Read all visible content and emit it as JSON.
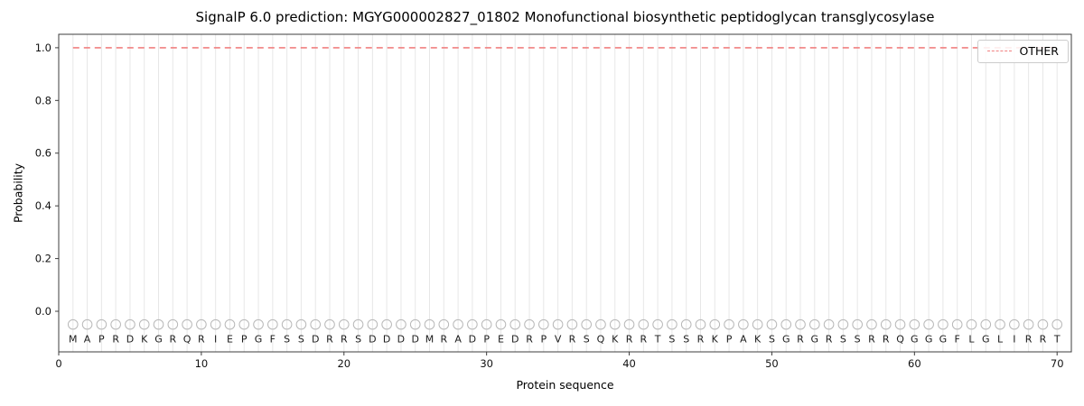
{
  "chart_data": {
    "type": "line",
    "title": "SignalP 6.0 prediction: MGYG000002827_01802 Monofunctional biosynthetic peptidoglycan transglycosylase",
    "xlabel": "Protein sequence",
    "ylabel": "Probability",
    "xlim": [
      0,
      71
    ],
    "ylim": [
      -0.154,
      1.051
    ],
    "x_ticks": [
      0,
      10,
      20,
      30,
      40,
      50,
      60,
      70
    ],
    "y_ticks": [
      0.0,
      0.2,
      0.4,
      0.6,
      0.8,
      1.0
    ],
    "grid": "vertical line at every residue position",
    "legend": {
      "position": "upper right",
      "entries": [
        {
          "label": "OTHER",
          "color": "#f08080",
          "style": "dashed"
        }
      ]
    },
    "series": [
      {
        "name": "OTHER",
        "x": [
          1,
          70
        ],
        "y": [
          1.0,
          1.0
        ],
        "color": "#f08080",
        "style": "dashed",
        "note": "constant probability 1.0 across all 70 residues"
      }
    ],
    "residue_markers": {
      "y": -0.05,
      "shape": "open-circle",
      "color": "#b8b8b8"
    },
    "sequence": [
      "M",
      "A",
      "P",
      "R",
      "D",
      "K",
      "G",
      "R",
      "Q",
      "R",
      "I",
      "E",
      "P",
      "G",
      "F",
      "S",
      "S",
      "D",
      "R",
      "R",
      "S",
      "D",
      "D",
      "D",
      "D",
      "M",
      "R",
      "A",
      "D",
      "P",
      "E",
      "D",
      "R",
      "P",
      "V",
      "R",
      "S",
      "Q",
      "K",
      "R",
      "R",
      "T",
      "S",
      "S",
      "R",
      "K",
      "P",
      "A",
      "K",
      "S",
      "G",
      "R",
      "G",
      "R",
      "S",
      "S",
      "R",
      "R",
      "Q",
      "G",
      "G",
      "G",
      "F",
      "L",
      "G",
      "L",
      "I",
      "R",
      "R",
      "T"
    ]
  }
}
